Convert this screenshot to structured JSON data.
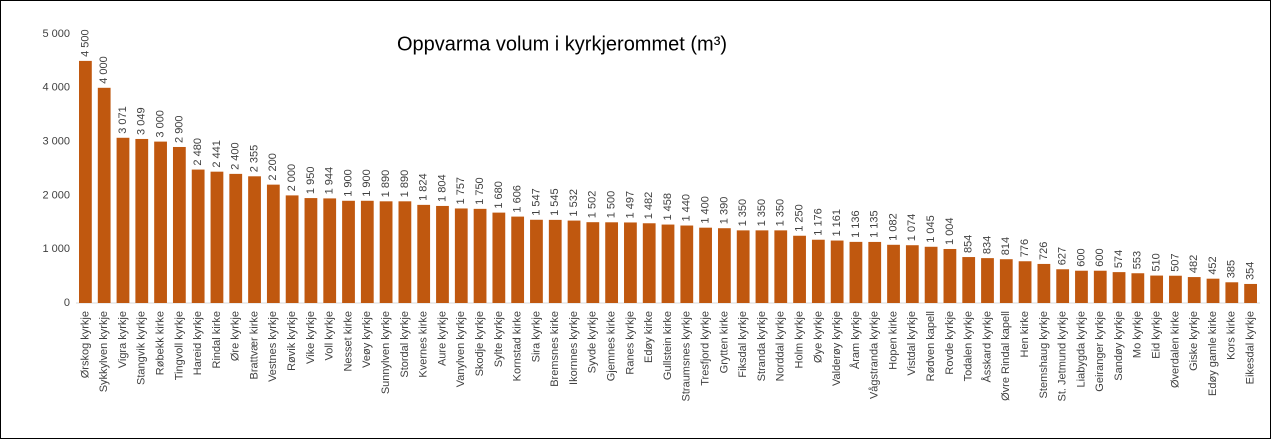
{
  "chart_data": {
    "type": "bar",
    "title": "Oppvarma volum i kyrkjerommet (m³)",
    "categories": [
      "Ørskog kyrkje",
      "Sykkylven kyrkje",
      "Vigra kyrkje",
      "Stangvik kyrkje",
      "Røbekk kirke",
      "Tingvoll kyrkje",
      "Hareid kyrkje",
      "Rindal kirke",
      "Øre kyrkje",
      "Brattvær kirke",
      "Vestnes kyrkje",
      "Røvik kyrkje",
      "Vike kyrkje",
      "Voll kyrkje",
      "Nesset kirke",
      "Veøy kyrkje",
      "Sunnylven kyrkje",
      "Stordal kyrkje",
      "Kvernes kirke",
      "Aure kyrkje",
      "Vanylven kyrkje",
      "Skodje kyrkje",
      "Sylte kyrkje",
      "Kornstad kirke",
      "Sira kyrkje",
      "Bremsnes kirke",
      "Ikornnes kyrkje",
      "Syvde kyrkje",
      "Gjemnes kirke",
      "Ranes kyrkje",
      "Edøy kirke",
      "Gullstein kirke",
      "Straumsnes kyrkje",
      "Tresfjord kyrkje",
      "Grytten kirke",
      "Fiksdal kyrkje",
      "Stranda kyrkje",
      "Norddal kyrkje",
      "Holm kyrkje",
      "Øye kyrkje",
      "Valderøy kyrkje",
      "Åram kyrkje",
      "Vågstranda kyrkje",
      "Hopen kirke",
      "Vistdal kyrkje",
      "Rødven kapell",
      "Rovde kyrkje",
      "Todalen kyrkje",
      "Åsskard kyrkje",
      "Øvre Rindal kapell",
      "Hen kirke",
      "Stemshaug kyrkje",
      "St. Jetmund kyrkje",
      "Liabygda kyrkje",
      "Geiranger kyrkje",
      "Sandøy kyrkje",
      "Mo kyrkje",
      "Eid kyrkje",
      "Øverdalen kirke",
      "Giske kyrkje",
      "Edøy gamle kirke",
      "Kors kirke",
      "Eikesdal kyrkje"
    ],
    "values": [
      4500,
      4000,
      3071,
      3049,
      3000,
      2900,
      2480,
      2441,
      2400,
      2355,
      2200,
      2000,
      1950,
      1944,
      1900,
      1900,
      1890,
      1890,
      1824,
      1804,
      1757,
      1750,
      1680,
      1606,
      1547,
      1545,
      1532,
      1502,
      1500,
      1497,
      1482,
      1458,
      1440,
      1400,
      1390,
      1350,
      1350,
      1350,
      1250,
      1176,
      1161,
      1136,
      1135,
      1082,
      1074,
      1045,
      1004,
      854,
      834,
      814,
      776,
      726,
      627,
      600,
      600,
      574,
      553,
      510,
      507,
      482,
      452,
      385,
      354
    ],
    "value_labels": [
      "4 500",
      "4 000",
      "3 071",
      "3 049",
      "3 000",
      "2 900",
      "2 480",
      "2 441",
      "2 400",
      "2 355",
      "2 200",
      "2 000",
      "1 950",
      "1 944",
      "1 900",
      "1 900",
      "1 890",
      "1 890",
      "1 824",
      "1 804",
      "1 757",
      "1 750",
      "1 680",
      "1 606",
      "1 547",
      "1 545",
      "1 532",
      "1 502",
      "1 500",
      "1 497",
      "1 482",
      "1 458",
      "1 440",
      "1 400",
      "1 390",
      "1 350",
      "1 350",
      "1 350",
      "1 250",
      "1 176",
      "1 161",
      "1 136",
      "1 135",
      "1 082",
      "1 074",
      "1 045",
      "1 004",
      "854",
      "834",
      "814",
      "776",
      "726",
      "627",
      "600",
      "600",
      "574",
      "553",
      "510",
      "507",
      "482",
      "452",
      "385",
      "354"
    ],
    "color": "#c0580f",
    "ylim": [
      0,
      5000
    ],
    "yticks": [
      0,
      {
        "value": 1000,
        "label": "1 000"
      },
      {
        "value": 2000,
        "label": "2 000"
      },
      {
        "value": 3000,
        "label": "3 000"
      },
      {
        "value": 4000,
        "label": "4 000"
      },
      {
        "value": 5000,
        "label": "5 000"
      }
    ],
    "grid": false
  }
}
